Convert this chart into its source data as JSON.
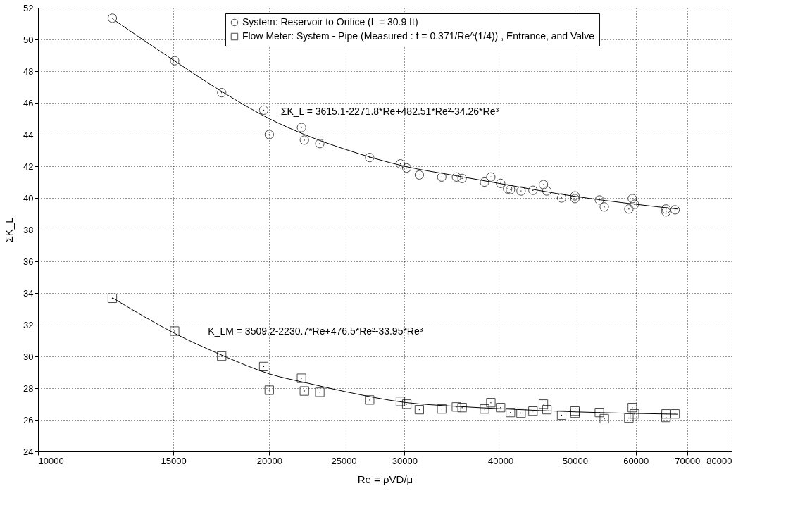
{
  "chart_data": {
    "type": "scatter",
    "xlabel": "Re = ρVD/μ",
    "ylabel": "ΣK_L",
    "xlim": [
      10000,
      80000
    ],
    "xticks": [
      10000,
      15000,
      20000,
      25000,
      30000,
      40000,
      50000,
      60000,
      70000,
      80000
    ],
    "ylim": [
      24,
      52
    ],
    "yticks": [
      24,
      26,
      28,
      30,
      32,
      34,
      36,
      38,
      40,
      42,
      44,
      46,
      48,
      50,
      52
    ],
    "log": "x",
    "grid": true,
    "legend": "top",
    "series": [
      {
        "name": "System: Reservoir to Orifice (L = 30.9 ft)",
        "marker": "circle",
        "color": "#000000",
        "x": [
          12495,
          15060,
          17340,
          19670,
          20000,
          22030,
          22220,
          23270,
          27020,
          29630,
          30200,
          31360,
          33540,
          35050,
          35650,
          38130,
          38860,
          40010,
          40860,
          41210,
          42540,
          44090,
          45490,
          45970,
          48040,
          50000,
          50000,
          53800,
          54600,
          58770,
          59380,
          59770,
          65700,
          65700,
          67500
        ],
        "values": [
          51.34,
          48.66,
          46.64,
          45.54,
          44.0,
          44.44,
          43.65,
          43.43,
          42.55,
          42.15,
          41.89,
          41.45,
          41.32,
          41.32,
          41.23,
          41.0,
          41.32,
          40.92,
          40.57,
          40.53,
          40.44,
          40.48,
          40.84,
          40.44,
          40.0,
          40.13,
          39.96,
          39.87,
          39.43,
          39.3,
          39.96,
          39.6,
          39.3,
          39.12,
          39.25
        ]
      },
      {
        "name": "Flow Meter: System - Pipe (Measured : f = 0.371/Re^(1/4)) , Entrance, and Valve",
        "marker": "square",
        "color": "#000000",
        "x": [
          12495,
          15060,
          17340,
          19670,
          20000,
          22030,
          22220,
          23270,
          27020,
          29630,
          30200,
          31360,
          33540,
          35050,
          35650,
          38130,
          38860,
          40010,
          41210,
          42540,
          44090,
          45490,
          45970,
          48040,
          50000,
          50000,
          53800,
          54600,
          58770,
          59380,
          59770,
          65700,
          65700,
          67500
        ],
        "values": [
          33.67,
          31.6,
          30.02,
          29.36,
          27.87,
          28.62,
          27.82,
          27.74,
          27.25,
          27.16,
          26.99,
          26.64,
          26.68,
          26.81,
          26.77,
          26.68,
          27.08,
          26.77,
          26.46,
          26.42,
          26.55,
          26.99,
          26.64,
          26.29,
          26.42,
          26.55,
          26.46,
          26.07,
          26.11,
          26.77,
          26.37,
          26.37,
          26.15,
          26.37
        ]
      },
      {
        "type": "line",
        "marker": "none",
        "color": "#000000",
        "x": [
          12500,
          15000,
          17500,
          20000,
          22500,
          25000,
          30000,
          35000,
          40000,
          50000,
          60000,
          68000
        ],
        "values": [
          51.3,
          48.7,
          46.6,
          45.0,
          43.9,
          43.1,
          42.0,
          41.4,
          40.9,
          40.1,
          39.6,
          39.3
        ]
      },
      {
        "type": "line",
        "marker": "none",
        "color": "#000000",
        "x": [
          12500,
          15000,
          17500,
          20000,
          22500,
          25000,
          30000,
          35000,
          40000,
          50000,
          60000,
          68000
        ],
        "values": [
          33.7,
          31.5,
          30.0,
          28.9,
          28.3,
          27.8,
          27.1,
          26.85,
          26.7,
          26.5,
          26.4,
          26.35
        ]
      }
    ],
    "annotations": [
      "ΣK_L = 3615.1-2271.8*Re+482.51*Re²-34.26*Re³",
      "K_LM = 3509.2-2230.7*Re+476.5*Re²-33.95*Re³"
    ]
  }
}
